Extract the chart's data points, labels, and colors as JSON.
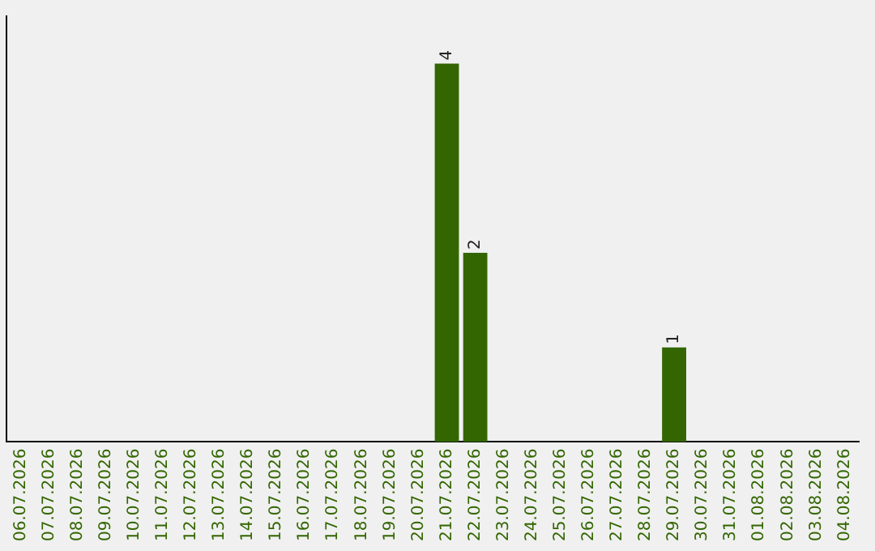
{
  "chart_data": {
    "type": "bar",
    "categories": [
      "06.07.2026",
      "07.07.2026",
      "08.07.2026",
      "09.07.2026",
      "10.07.2026",
      "11.07.2026",
      "12.07.2026",
      "13.07.2026",
      "14.07.2026",
      "15.07.2026",
      "16.07.2026",
      "17.07.2026",
      "18.07.2026",
      "19.07.2026",
      "20.07.2026",
      "21.07.2026",
      "22.07.2026",
      "23.07.2026",
      "24.07.2026",
      "25.07.2026",
      "26.07.2026",
      "27.07.2026",
      "28.07.2026",
      "29.07.2026",
      "30.07.2026",
      "31.07.2026",
      "01.08.2026",
      "02.08.2026",
      "03.08.2026",
      "04.08.2026"
    ],
    "values": [
      null,
      null,
      null,
      null,
      null,
      null,
      null,
      null,
      null,
      null,
      null,
      null,
      null,
      null,
      null,
      4,
      2,
      null,
      null,
      null,
      null,
      null,
      null,
      1,
      null,
      null,
      null,
      null,
      null,
      null
    ],
    "color": "#336600",
    "data_labels": true,
    "tick_labels": "x",
    "grid": false,
    "legend": false
  }
}
